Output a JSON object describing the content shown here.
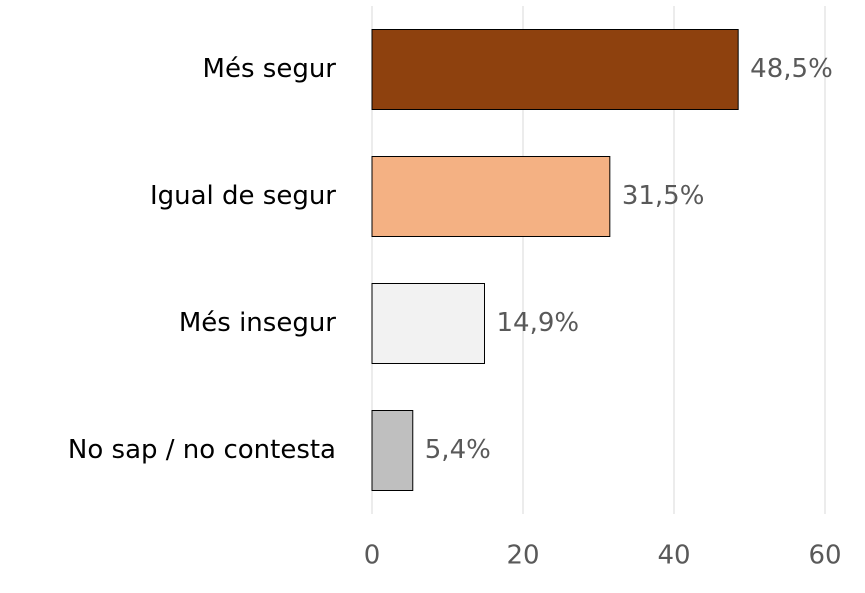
{
  "chart_data": {
    "type": "barh",
    "categories": [
      "Més segur",
      "Igual de segur",
      "Més insegur",
      "No sap / no contesta"
    ],
    "values": [
      48.5,
      31.5,
      14.9,
      5.4
    ],
    "value_labels": [
      "48,5%",
      "31,5%",
      "14,9%",
      "5,4%"
    ],
    "colors": [
      "#8e410e",
      "#f4b183",
      "#f2f2f2",
      "#bfbfbf"
    ],
    "xlim": [
      0,
      60
    ],
    "xticks": [
      0,
      20,
      40,
      60
    ],
    "grid": true
  }
}
